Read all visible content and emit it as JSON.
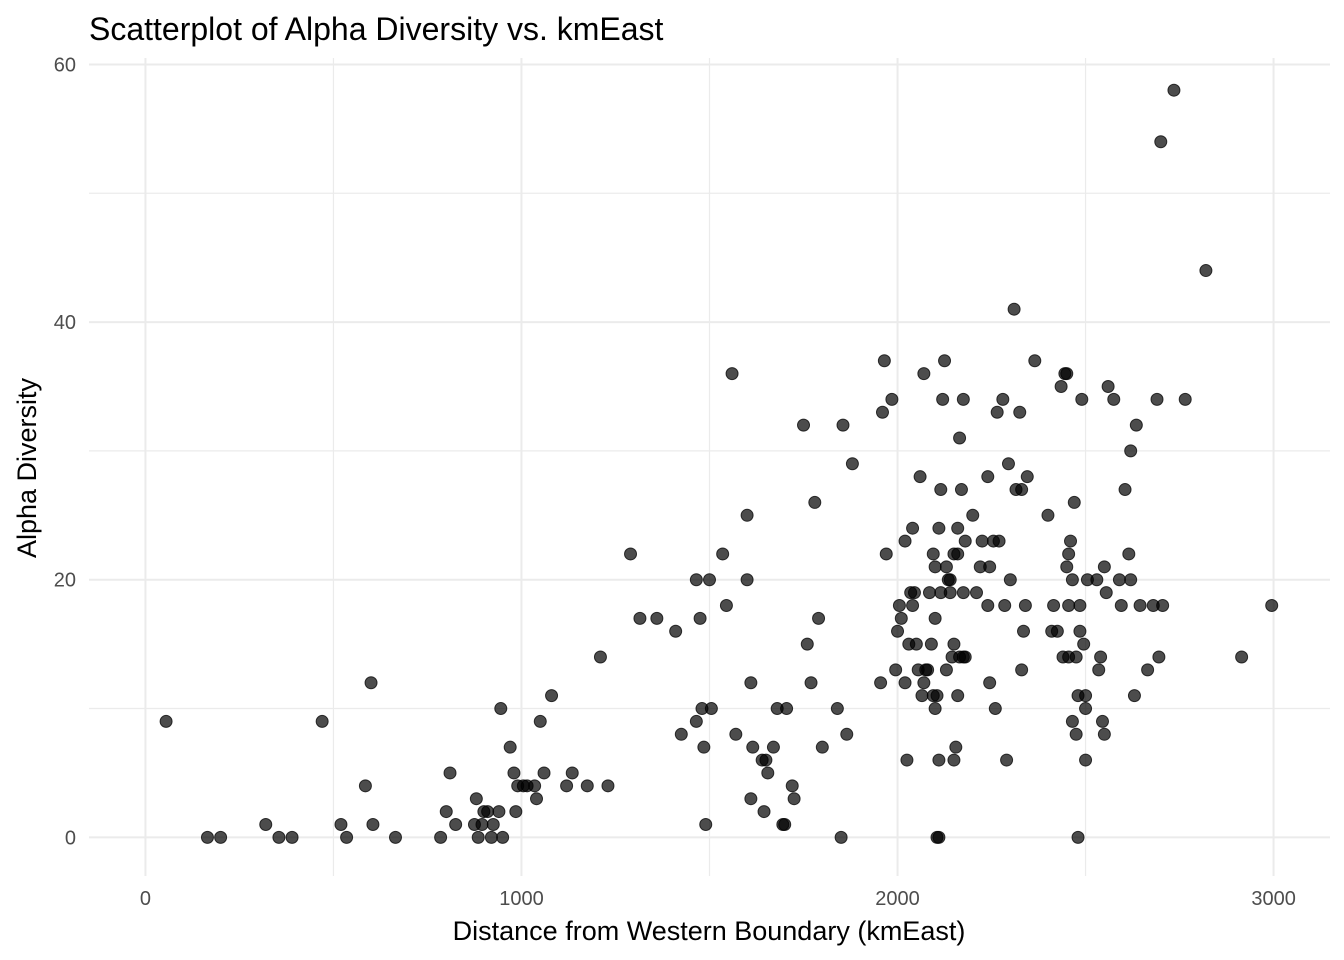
{
  "chart_data": {
    "type": "scatter",
    "title": "Scatterplot of Alpha Diversity vs. kmEast",
    "xlabel": "Distance from Western Boundary (kmEast)",
    "ylabel": "Alpha Diversity",
    "xlim": [
      -150,
      3150
    ],
    "ylim": [
      -3,
      60.5
    ],
    "xticks": [
      0,
      1000,
      2000,
      3000
    ],
    "yticks": [
      0,
      20,
      40,
      60
    ],
    "xminor": [
      500,
      1500,
      2500
    ],
    "yminor": [
      10,
      30,
      50
    ],
    "grid": true,
    "point_color": "#000000",
    "point_alpha": 0.7,
    "points": [
      [
        55,
        9
      ],
      [
        165,
        0
      ],
      [
        200,
        0
      ],
      [
        320,
        1
      ],
      [
        355,
        0
      ],
      [
        390,
        0
      ],
      [
        470,
        9
      ],
      [
        520,
        1
      ],
      [
        535,
        0
      ],
      [
        585,
        4
      ],
      [
        600,
        12
      ],
      [
        605,
        1
      ],
      [
        665,
        0
      ],
      [
        785,
        0
      ],
      [
        800,
        2
      ],
      [
        810,
        5
      ],
      [
        825,
        1
      ],
      [
        875,
        1
      ],
      [
        880,
        3
      ],
      [
        885,
        0
      ],
      [
        895,
        1
      ],
      [
        900,
        2
      ],
      [
        910,
        2
      ],
      [
        920,
        0
      ],
      [
        925,
        1
      ],
      [
        940,
        2
      ],
      [
        945,
        10
      ],
      [
        950,
        0
      ],
      [
        970,
        7
      ],
      [
        980,
        5
      ],
      [
        985,
        2
      ],
      [
        990,
        4
      ],
      [
        1005,
        4
      ],
      [
        1015,
        4
      ],
      [
        1035,
        4
      ],
      [
        1040,
        3
      ],
      [
        1050,
        9
      ],
      [
        1060,
        5
      ],
      [
        1080,
        11
      ],
      [
        1120,
        4
      ],
      [
        1135,
        5
      ],
      [
        1175,
        4
      ],
      [
        1210,
        14
      ],
      [
        1230,
        4
      ],
      [
        1290,
        22
      ],
      [
        1315,
        17
      ],
      [
        1360,
        17
      ],
      [
        1410,
        16
      ],
      [
        1425,
        8
      ],
      [
        1465,
        9
      ],
      [
        1465,
        20
      ],
      [
        1475,
        17
      ],
      [
        1480,
        10
      ],
      [
        1485,
        7
      ],
      [
        1490,
        1
      ],
      [
        1500,
        20
      ],
      [
        1505,
        10
      ],
      [
        1535,
        22
      ],
      [
        1545,
        18
      ],
      [
        1560,
        36
      ],
      [
        1570,
        8
      ],
      [
        1600,
        25
      ],
      [
        1600,
        20
      ],
      [
        1610,
        12
      ],
      [
        1610,
        3
      ],
      [
        1615,
        7
      ],
      [
        1640,
        6
      ],
      [
        1645,
        2
      ],
      [
        1650,
        6
      ],
      [
        1655,
        5
      ],
      [
        1670,
        7
      ],
      [
        1680,
        10
      ],
      [
        1695,
        1
      ],
      [
        1700,
        1
      ],
      [
        1705,
        10
      ],
      [
        1720,
        4
      ],
      [
        1725,
        3
      ],
      [
        1750,
        32
      ],
      [
        1760,
        15
      ],
      [
        1770,
        12
      ],
      [
        1780,
        26
      ],
      [
        1790,
        17
      ],
      [
        1800,
        7
      ],
      [
        1840,
        10
      ],
      [
        1850,
        0
      ],
      [
        1855,
        32
      ],
      [
        1865,
        8
      ],
      [
        1880,
        29
      ],
      [
        1955,
        12
      ],
      [
        1960,
        33
      ],
      [
        1965,
        37
      ],
      [
        1970,
        22
      ],
      [
        1985,
        34
      ],
      [
        1995,
        13
      ],
      [
        2000,
        16
      ],
      [
        2005,
        18
      ],
      [
        2010,
        17
      ],
      [
        2020,
        23
      ],
      [
        2020,
        12
      ],
      [
        2025,
        6
      ],
      [
        2030,
        15
      ],
      [
        2035,
        19
      ],
      [
        2040,
        18
      ],
      [
        2040,
        24
      ],
      [
        2045,
        19
      ],
      [
        2050,
        15
      ],
      [
        2055,
        13
      ],
      [
        2060,
        28
      ],
      [
        2065,
        11
      ],
      [
        2070,
        36
      ],
      [
        2070,
        12
      ],
      [
        2075,
        13
      ],
      [
        2080,
        13
      ],
      [
        2085,
        19
      ],
      [
        2090,
        15
      ],
      [
        2095,
        22
      ],
      [
        2095,
        11
      ],
      [
        2100,
        17
      ],
      [
        2100,
        21
      ],
      [
        2100,
        10
      ],
      [
        2105,
        11
      ],
      [
        2105,
        0
      ],
      [
        2110,
        0
      ],
      [
        2110,
        24
      ],
      [
        2110,
        6
      ],
      [
        2115,
        27
      ],
      [
        2115,
        19
      ],
      [
        2120,
        34
      ],
      [
        2125,
        37
      ],
      [
        2130,
        13
      ],
      [
        2130,
        21
      ],
      [
        2135,
        20
      ],
      [
        2140,
        20
      ],
      [
        2140,
        19
      ],
      [
        2145,
        14
      ],
      [
        2150,
        22
      ],
      [
        2150,
        6
      ],
      [
        2150,
        15
      ],
      [
        2155,
        7
      ],
      [
        2160,
        24
      ],
      [
        2160,
        11
      ],
      [
        2160,
        22
      ],
      [
        2165,
        14
      ],
      [
        2165,
        31
      ],
      [
        2170,
        27
      ],
      [
        2175,
        14
      ],
      [
        2175,
        34
      ],
      [
        2175,
        19
      ],
      [
        2180,
        23
      ],
      [
        2180,
        14
      ],
      [
        2200,
        25
      ],
      [
        2210,
        19
      ],
      [
        2220,
        21
      ],
      [
        2225,
        23
      ],
      [
        2240,
        18
      ],
      [
        2240,
        28
      ],
      [
        2245,
        12
      ],
      [
        2245,
        21
      ],
      [
        2255,
        23
      ],
      [
        2260,
        10
      ],
      [
        2265,
        33
      ],
      [
        2270,
        23
      ],
      [
        2280,
        34
      ],
      [
        2285,
        18
      ],
      [
        2290,
        6
      ],
      [
        2295,
        29
      ],
      [
        2300,
        20
      ],
      [
        2310,
        41
      ],
      [
        2315,
        27
      ],
      [
        2325,
        33
      ],
      [
        2330,
        13
      ],
      [
        2330,
        27
      ],
      [
        2335,
        16
      ],
      [
        2340,
        18
      ],
      [
        2345,
        28
      ],
      [
        2365,
        37
      ],
      [
        2400,
        25
      ],
      [
        2410,
        16
      ],
      [
        2415,
        18
      ],
      [
        2425,
        16
      ],
      [
        2435,
        35
      ],
      [
        2440,
        14
      ],
      [
        2445,
        36
      ],
      [
        2450,
        21
      ],
      [
        2450,
        36
      ],
      [
        2455,
        18
      ],
      [
        2455,
        22
      ],
      [
        2455,
        14
      ],
      [
        2460,
        23
      ],
      [
        2465,
        20
      ],
      [
        2465,
        9
      ],
      [
        2470,
        26
      ],
      [
        2475,
        14
      ],
      [
        2475,
        8
      ],
      [
        2480,
        11
      ],
      [
        2480,
        0
      ],
      [
        2485,
        18
      ],
      [
        2485,
        16
      ],
      [
        2490,
        34
      ],
      [
        2495,
        15
      ],
      [
        2500,
        10
      ],
      [
        2500,
        11
      ],
      [
        2505,
        20
      ],
      [
        2500,
        6
      ],
      [
        2530,
        20
      ],
      [
        2535,
        13
      ],
      [
        2540,
        14
      ],
      [
        2545,
        9
      ],
      [
        2550,
        8
      ],
      [
        2550,
        21
      ],
      [
        2555,
        19
      ],
      [
        2560,
        35
      ],
      [
        2575,
        34
      ],
      [
        2590,
        20
      ],
      [
        2595,
        18
      ],
      [
        2605,
        27
      ],
      [
        2615,
        22
      ],
      [
        2620,
        30
      ],
      [
        2620,
        20
      ],
      [
        2630,
        11
      ],
      [
        2635,
        32
      ],
      [
        2645,
        18
      ],
      [
        2665,
        13
      ],
      [
        2680,
        18
      ],
      [
        2690,
        34
      ],
      [
        2695,
        14
      ],
      [
        2700,
        54
      ],
      [
        2705,
        18
      ],
      [
        2735,
        58
      ],
      [
        2765,
        34
      ],
      [
        2820,
        44
      ],
      [
        2915,
        14
      ],
      [
        2995,
        18
      ]
    ]
  }
}
